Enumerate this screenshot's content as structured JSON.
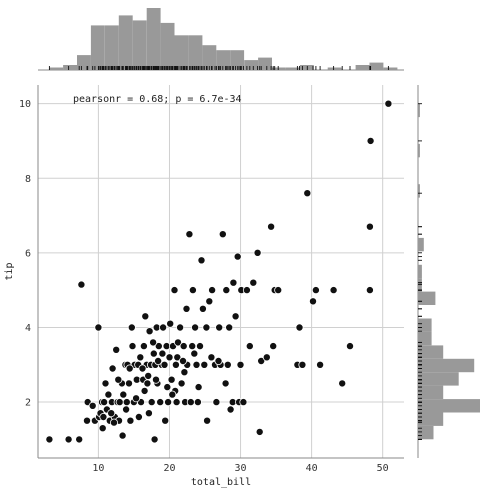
{
  "chart_data": {
    "type": "scatter",
    "subtype": "jointplot",
    "xlabel": "total_bill",
    "ylabel": "tip",
    "xlim": [
      1.5,
      53
    ],
    "ylim": [
      0.5,
      10.5
    ],
    "xticks": [
      10,
      20,
      30,
      40,
      50
    ],
    "yticks": [
      2,
      4,
      6,
      8,
      10
    ],
    "grid": true,
    "annotation": "pearsonr = 0.68; p = 6.7e-34",
    "colors": {
      "points": "#111111",
      "bars": "#999999",
      "rug": "#111111",
      "grid": "#d0d0d0"
    },
    "points": [
      [
        3.1,
        1.0
      ],
      [
        5.8,
        1.0
      ],
      [
        7.3,
        1.0
      ],
      [
        7.6,
        5.15
      ],
      [
        8.4,
        1.5
      ],
      [
        8.5,
        2.0
      ],
      [
        9.2,
        1.9
      ],
      [
        9.5,
        1.5
      ],
      [
        10.1,
        1.6
      ],
      [
        10.0,
        4.0
      ],
      [
        10.3,
        1.7
      ],
      [
        10.5,
        2.0
      ],
      [
        10.6,
        1.3
      ],
      [
        10.8,
        2.0
      ],
      [
        11.0,
        2.5
      ],
      [
        11.2,
        1.8
      ],
      [
        11.4,
        2.2
      ],
      [
        11.6,
        1.5
      ],
      [
        11.9,
        2.0
      ],
      [
        12.0,
        2.9
      ],
      [
        12.3,
        1.6
      ],
      [
        12.5,
        3.4
      ],
      [
        12.7,
        2.0
      ],
      [
        12.9,
        1.5
      ],
      [
        13.0,
        2.0
      ],
      [
        13.3,
        2.5
      ],
      [
        13.4,
        1.1
      ],
      [
        13.5,
        2.2
      ],
      [
        13.8,
        3.0
      ],
      [
        14.0,
        2.0
      ],
      [
        14.1,
        3.0
      ],
      [
        14.3,
        2.5
      ],
      [
        14.5,
        1.5
      ],
      [
        14.7,
        4.0
      ],
      [
        14.8,
        3.5
      ],
      [
        15.0,
        2.0
      ],
      [
        15.1,
        3.0
      ],
      [
        15.4,
        2.6
      ],
      [
        15.6,
        3.0
      ],
      [
        15.7,
        1.6
      ],
      [
        15.9,
        3.2
      ],
      [
        16.0,
        2.0
      ],
      [
        16.3,
        2.6
      ],
      [
        16.4,
        3.5
      ],
      [
        16.6,
        4.3
      ],
      [
        16.8,
        3.0
      ],
      [
        16.9,
        2.5
      ],
      [
        17.1,
        1.7
      ],
      [
        17.2,
        3.9
      ],
      [
        17.4,
        3.0
      ],
      [
        17.5,
        2.0
      ],
      [
        17.8,
        3.3
      ],
      [
        17.9,
        1.0
      ],
      [
        18.0,
        3.0
      ],
      [
        18.2,
        4.0
      ],
      [
        18.3,
        2.5
      ],
      [
        18.5,
        3.5
      ],
      [
        18.7,
        2.0
      ],
      [
        18.9,
        3.0
      ],
      [
        19.1,
        4.0
      ],
      [
        19.3,
        3.0
      ],
      [
        19.4,
        1.5
      ],
      [
        19.6,
        3.5
      ],
      [
        19.8,
        2.0
      ],
      [
        20.0,
        3.2
      ],
      [
        20.1,
        4.1
      ],
      [
        20.3,
        2.6
      ],
      [
        20.5,
        3.5
      ],
      [
        20.7,
        5.0
      ],
      [
        20.9,
        3.0
      ],
      [
        21.0,
        2.0
      ],
      [
        21.2,
        3.6
      ],
      [
        21.5,
        4.0
      ],
      [
        21.7,
        2.5
      ],
      [
        22.0,
        3.5
      ],
      [
        22.2,
        2.0
      ],
      [
        22.4,
        4.5
      ],
      [
        22.5,
        3.0
      ],
      [
        22.8,
        6.5
      ],
      [
        23.0,
        2.0
      ],
      [
        23.2,
        3.5
      ],
      [
        23.3,
        5.0
      ],
      [
        23.6,
        4.0
      ],
      [
        23.8,
        3.0
      ],
      [
        24.0,
        2.0
      ],
      [
        24.3,
        3.5
      ],
      [
        24.5,
        5.8
      ],
      [
        24.7,
        4.5
      ],
      [
        24.9,
        3.0
      ],
      [
        25.2,
        4.0
      ],
      [
        25.3,
        1.5
      ],
      [
        25.6,
        4.7
      ],
      [
        25.9,
        3.2
      ],
      [
        26.0,
        5.0
      ],
      [
        26.4,
        3.0
      ],
      [
        26.6,
        2.0
      ],
      [
        27.0,
        4.0
      ],
      [
        27.2,
        3.0
      ],
      [
        27.5,
        6.5
      ],
      [
        27.9,
        2.5
      ],
      [
        28.0,
        5.0
      ],
      [
        28.2,
        3.0
      ],
      [
        28.4,
        4.0
      ],
      [
        28.6,
        1.8
      ],
      [
        28.9,
        2.0
      ],
      [
        29.0,
        5.2
      ],
      [
        29.3,
        4.3
      ],
      [
        29.6,
        5.9
      ],
      [
        29.8,
        2.0
      ],
      [
        30.0,
        3.0
      ],
      [
        30.1,
        5.0
      ],
      [
        30.4,
        2.0
      ],
      [
        30.9,
        5.0
      ],
      [
        31.3,
        3.5
      ],
      [
        31.8,
        5.2
      ],
      [
        32.4,
        6.0
      ],
      [
        32.7,
        1.2
      ],
      [
        32.9,
        3.1
      ],
      [
        33.7,
        3.2
      ],
      [
        34.3,
        6.7
      ],
      [
        34.6,
        3.5
      ],
      [
        34.8,
        5.0
      ],
      [
        35.3,
        5.0
      ],
      [
        38.0,
        3.0
      ],
      [
        38.3,
        4.0
      ],
      [
        38.7,
        3.0
      ],
      [
        39.4,
        7.6
      ],
      [
        40.2,
        4.7
      ],
      [
        40.6,
        5.0
      ],
      [
        41.2,
        3.0
      ],
      [
        43.1,
        5.0
      ],
      [
        44.3,
        2.5
      ],
      [
        45.4,
        3.5
      ],
      [
        48.2,
        5.0
      ],
      [
        48.2,
        6.7
      ],
      [
        48.3,
        9.0
      ],
      [
        50.8,
        10.0
      ],
      [
        12.2,
        1.45
      ],
      [
        16.5,
        2.3
      ],
      [
        19.0,
        3.3
      ],
      [
        21.1,
        3.2
      ],
      [
        13.9,
        1.8
      ],
      [
        17.0,
        2.7
      ],
      [
        24.1,
        2.4
      ],
      [
        26.9,
        3.1
      ],
      [
        11.8,
        1.7
      ],
      [
        14.4,
        2.9
      ],
      [
        18.4,
        3.1
      ],
      [
        20.8,
        2.3
      ],
      [
        22.1,
        2.8
      ],
      [
        15.3,
        2.1
      ],
      [
        17.7,
        3.6
      ],
      [
        19.7,
        2.4
      ],
      [
        23.5,
        3.3
      ],
      [
        12.8,
        2.6
      ],
      [
        10.7,
        1.6
      ],
      [
        16.2,
        2.9
      ],
      [
        18.1,
        2.6
      ],
      [
        20.4,
        2.2
      ],
      [
        21.9,
        3.1
      ]
    ],
    "x_hist": {
      "bin_edges": [
        3.07,
        5.03,
        6.99,
        8.95,
        10.91,
        12.87,
        14.83,
        16.79,
        18.75,
        20.71,
        22.67,
        24.63,
        26.59,
        28.55,
        30.51,
        32.47,
        34.43,
        36.39,
        38.35,
        40.31,
        42.27,
        44.23,
        46.19,
        48.15,
        50.11,
        52.07
      ],
      "counts": [
        1,
        2,
        6,
        18,
        18,
        22,
        20,
        25,
        19,
        14,
        14,
        10,
        8,
        8,
        4,
        5,
        1,
        1,
        2,
        0,
        1,
        0,
        2,
        3,
        1
      ]
    },
    "y_hist": {
      "bin_edges": [
        1.0,
        1.36,
        1.72,
        2.08,
        2.44,
        2.8,
        3.16,
        3.52,
        3.88,
        4.24,
        4.6,
        4.96,
        5.32,
        5.68,
        6.04,
        6.4,
        6.76,
        7.12,
        7.48,
        7.84,
        8.2,
        8.56,
        8.92,
        9.28,
        9.64,
        10.0
      ],
      "counts": [
        8,
        13,
        32,
        13,
        21,
        29,
        13,
        7,
        7,
        0,
        9,
        2,
        2,
        0,
        3,
        0,
        0,
        0,
        1,
        0,
        0,
        1,
        0,
        0,
        1
      ]
    }
  }
}
